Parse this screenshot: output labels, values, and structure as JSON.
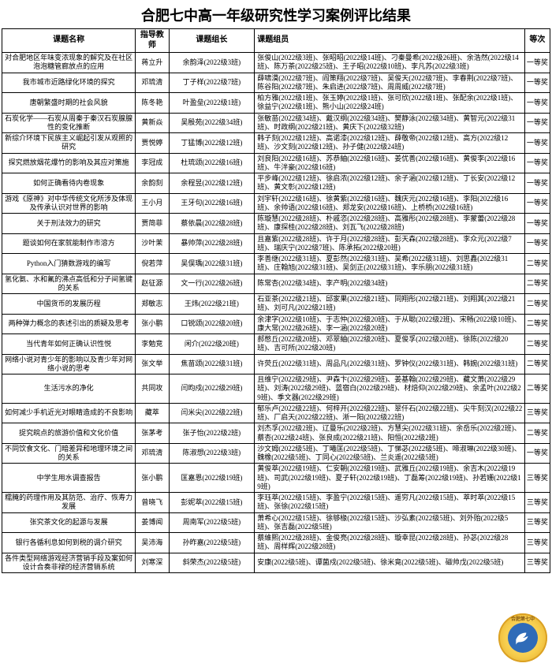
{
  "title": "合肥七中高一年级研究性学习案例评比结果",
  "headers": {
    "topic": "课题名称",
    "advisor": "指导教师",
    "leader": "课题组长",
    "members": "课题组员",
    "grade": "等次"
  },
  "rows": [
    {
      "topic": "对合肥地区年味变浓现象的解究及在社区泡泡糖管廊放点的应用",
      "advisor": "蒋立升",
      "leader": "余韵泽(2022级3班)",
      "members": "张俊山(2022级3班)、张昭昭(2022级14班)、刁秦曼希(2022级26班)、余浩然(2022级14班)、陈万茶(2022级25班)、王子昭(2022级10班)、李凡苏(2022级3班)",
      "grade": "一等奖"
    },
    {
      "topic": "我市城市近路绿化环境的探究",
      "advisor": "邓琉清",
      "leader": "丁子样(2022级7班)",
      "members": "薛啸漠(2022级7班)、阎策翔(2022级7班)、吴俊天(2022级7班)、李春荆(2022级7班)、陈谷阳(2022级7班)、朱启进(2022级7班)、周周威(2022级7班)",
      "grade": "一等奖"
    },
    {
      "topic": "唐朝繁盛时期的社会风貌",
      "advisor": "陈冬艳",
      "leader": "叶盈垒(2022级1班)",
      "members": "柏方雅(2022级1班)、张玉婷(2022级1班)、张可欣(2022级1班)、张配余(2022级1班)、徐益宁(2022级1班)、熊小山(2022级24班)",
      "grade": "一等奖"
    },
    {
      "topic": "石炭化学——石炭从周秦于秦汉石炭腺腺性的变化推断",
      "advisor": "黄新焱",
      "leader": "吴殷苑(2022级34班)",
      "members": "张敏苗(2022级34班)、戴汉纲(2022级34班)、樊静泳(2022级34班)、黄智元(2022级31班)、时政纲(2022级21班)、黄庆下(2022级32班)",
      "grade": "一等奖"
    },
    {
      "topic": "新综介环境下民族主义崛起引发从观照的研究",
      "advisor": "贾悦婷",
      "leader": "丁猛博(2022级12班)",
      "members": "韩子刻(2022级12班)、高诺漆(2022级12班)、薛敬帝(2022级12班)、高方(2022级12班)、沙文刻(2022级12班)、孙子健(2022级24班)",
      "grade": "一等奖"
    },
    {
      "topic": "探究燃放烟花爆竹的影响及其应对策施",
      "advisor": "李冠成",
      "leader": "杜琉颂(2022级16班)",
      "members": "刘良阳(2022级16班)、苏恭紬(2022级16班)、姜优善(2022级16班)、黄俊李(2022级16班)、牛泮豪(2022级16班)",
      "grade": "一等奖"
    },
    {
      "topic": "如何正确看待内卷现象",
      "advisor": "余韵刻",
      "leader": "余程昱(2022级12班)",
      "members": "平步峰(2022级12班)、徐启浓(2022级12班)、余子涵(2022级12班)、丁长安(2022级12班)、黄文彰(2022级12班)",
      "grade": "一等奖"
    },
    {
      "topic": "游戏《原神》对中华传统文化所涉及体现及传承认识对世界的影响",
      "advisor": "王小月",
      "leader": "王牙句(2022级16班)",
      "members": "刘宇轩(2022级16班)、徐黄紫(2022级16班)、魏庆元(2022级16班)、李阳(2022级16班)、余帅语(2022级16班)、郑龙安(2022级16班)、上桥桥(2022级16班)",
      "grade": "一等奖"
    },
    {
      "topic": "关于刑法效力的研究",
      "advisor": "贾简菲",
      "leader": "蔡依晨(2022级28班)",
      "members": "陈璇慧(2022级28班)、朴戚恣(2022级28班)、高雅彤(2022级28班)、李蒙蕾(2022级28班)、康探桂(2022级28班)、刘瓦飞(2022级28班)",
      "grade": "一等奖"
    },
    {
      "topic": "题谈如何在家就能制作市溶方",
      "advisor": "沙叶茉",
      "leader": "暴帅萍(2022级28班)",
      "members": "且嘉紫(2022级28班)、许于月(2022级28班)、彭天森(2022级28班)、李众元(2022级7班)、瑞庆宁(2022级7班)、陈承拓(2022级20班)",
      "grade": "一等奖"
    },
    {
      "topic": "Python入门猜数游戏的编写",
      "advisor": "倪若萍",
      "leader": "吴俣瑀(2022级31班)",
      "members": "李善继(2022级31班)、夏彭然(2022级31班)、吴希(2022级31班)、刘思鑫(2022级31班)、庄翰旭(2022级31班)、吴剑正(2022级31班)、李乐朋(2022级31班)",
      "grade": "二等奖"
    },
    {
      "topic": "氢化氨、水和氟的沸点高低和分子间氢键的关系",
      "advisor": "赵征源",
      "leader": "文一行(2022级26班)",
      "members": "陈常杏(2022级34班)、李产明(2022级34班)",
      "grade": "二等奖"
    },
    {
      "topic": "中国货币的发展历程",
      "advisor": "郑敏志",
      "leader": "王炜(2022级21班)",
      "members": "石亚茶(2022级21班)、邱家果(2022级21班)、同翔彤(2022级21班)、刘翔其(2022级21班)、刘可凡(2022级21班)",
      "grade": "二等奖"
    },
    {
      "topic": "两种弹力概念的表述引出的质疑及思考",
      "advisor": "张小鹏",
      "leader": "口锐颂(2022级20班)",
      "members": "余津字(2022级10班)、于志仲(2022级20班)、于从聪(2022级2班)、宋畅(2022级10班)、康大常(2022级26班)、李一涵(2022级20班)",
      "grade": "二等奖"
    },
    {
      "topic": "当代青年如何正确认识性悦",
      "advisor": "李勉竞",
      "leader": "闲介(2022级20班)",
      "members": "郝憋丘(2022级20班)、邓翠紬(2022级20班)、夏俊孚(2022级20班)、徐陈(2022级20班)、吉可所(2022级20班)",
      "grade": "二等奖"
    },
    {
      "topic": "网络小说对青少年的影响以及青少年对网络小说的思考",
      "advisor": "张文举",
      "leader": "焦苗颂(2022级31班)",
      "members": "许荧丘(2022级31班)、周品凡(2022级31班)、罗钟仪(2022级31班)、韩婉(2022级31班)",
      "grade": "二等奖"
    },
    {
      "topic": "生活污水的净化",
      "advisor": "共同攻",
      "leader": "闫昀戍(2022级29班)",
      "members": "且维宁(2022级29班)、尹森卞(2022级29班)、姜基翰(2022级29班)、藏文萧(2022级29班)、刘涛(2022级29班)、蓝宿白(2022级29班)、材焙仰(2022级29班)、余孟叶(2022级29班)、季文器(2022级29班)",
      "grade": "二等奖"
    },
    {
      "topic": "如何减少手机近光对眼睛造成的不良影响",
      "advisor": "藏萃",
      "leader": "闫米尖(2022级22班)",
      "members": "郁乐卢(2022级22班)、何梓开(2022级22班)、翠仟石(2022级22班)、尖牛刻汉(2022级22班)、厂启天(2022级22班)、淅一阳(2022级22班)",
      "grade": "三等奖"
    },
    {
      "topic": "捉究皖点的旅游价值和文化价值",
      "advisor": "张茅考",
      "leader": "张子怡(2022级2班)",
      "members": "刘杰孚(2022级2班)、辽曼乐(2022级2班)、方慧尖(2022级31班)、余岳乐(2022级2班)、蔡杏(2022级24班)、张良成(2022级21班)、阳恒(2022级2班)",
      "grade": "二等奖"
    },
    {
      "topic": "不同饮食文化、门暗差异和地理环境之间的关系",
      "advisor": "邓琉清",
      "leader": "陈淑想(2022级3班)",
      "members": "沙文姆(2022级5班)、丁曦匡(2022级5班)、丁悌苾(2022级5班)、啼淑琳(2022级30班)、魏橡(2022级5班)、丁同心(2022级5班)、兰炎遥(2022级5班)",
      "grade": "一等奖"
    },
    {
      "topic": "中学生用水调查报告",
      "advisor": "张小鹏",
      "leader": "匡嘉恩(2022级19班)",
      "members": "黄俊萃(2022级19班)、仁安朝(2022级19班)、武雅丘(2022级19班)、余吉木(2022级19班)、司武(2022级19班)、夏子轩(2022级19班)、丁磊筹(2022级19班)、孙若姗(2022级19班)",
      "grade": "三等奖"
    },
    {
      "topic": "糯腌的药理作用及其防范、治疗、恢寿力发展",
      "advisor": "曾晓飞",
      "leader": "彭妮萃(2022级15班)",
      "members": "李珏萃(2022级15班)、李盈宁(2022级15班)、遥穷凡(2022级15班)、萃时萃(2022级15班)、张徐(2022级15班)",
      "grade": "三等奖"
    },
    {
      "topic": "张究茶文化的起源与发展",
      "advisor": "姜博闻",
      "leader": "周南军(2022级5班)",
      "members": "萧希心(2022级15班)、徐够椽(2022级15班)、沙弘素(2022级5班)、刘外贻(2022级5班)、张吉磊(2022级5班)",
      "grade": "三等奖"
    },
    {
      "topic": "银行各循利息如何到税的调介研究",
      "advisor": "吴沛海",
      "leader": "孙昨嘉(2022级5班)",
      "members": "蔡維熙(2022级28班)、金俊亮(2022级28班)、璇幸昆(2022级28班)、孙苾(2022级28班)、周样辉(2022级28班)",
      "grade": "三等奖"
    },
    {
      "topic": "各件类型网络游戏经济营销手段及案如何设计合奏非禄的经济营销系统",
      "advisor": "刘寒深",
      "leader": "斜荣杰(2022级5班)",
      "members": "安康(2022级5班)、谭菌戍(2022级5班)、徐米竟(2022级5班)、磁帅戊(2022级5班)",
      "grade": "三等奖"
    }
  ],
  "watermark": {
    "label": "合肥第七中"
  }
}
